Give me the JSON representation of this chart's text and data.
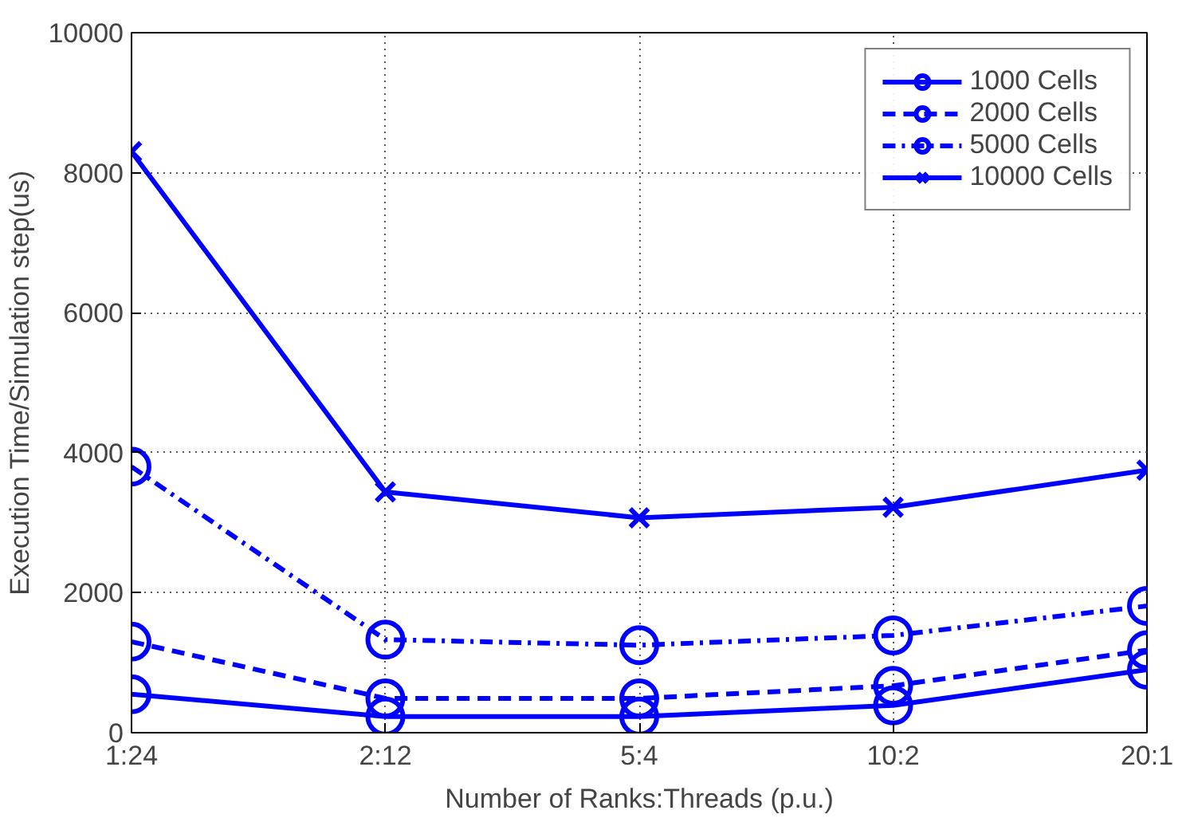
{
  "chart_data": {
    "type": "line",
    "xlabel": "Number of Ranks:Threads (p.u.)",
    "ylabel": "Execution Time/Simulation step(us)",
    "categories": [
      "1:24",
      "2:12",
      "5:4",
      "10:2",
      "20:1"
    ],
    "ylim": [
      0,
      10000
    ],
    "yticks": [
      0,
      2000,
      4000,
      6000,
      8000,
      10000
    ],
    "grid": true,
    "legend": "top right",
    "series": [
      {
        "name": "1000 Cells",
        "color": "#0000ff",
        "marker": "circle",
        "line_style": "solid",
        "values": [
          550,
          230,
          230,
          390,
          900
        ]
      },
      {
        "name": "2000 Cells",
        "color": "#0000ff",
        "marker": "circle",
        "line_style": "dashed",
        "values": [
          1300,
          490,
          490,
          670,
          1180
        ]
      },
      {
        "name": "5000 Cells",
        "color": "#0000ff",
        "marker": "circle",
        "line_style": "dashdot",
        "values": [
          3800,
          1330,
          1250,
          1390,
          1810
        ]
      },
      {
        "name": "10000 Cells",
        "color": "#0000ff",
        "marker": "cross",
        "line_style": "solid",
        "values": [
          8300,
          3440,
          3070,
          3220,
          3750
        ]
      }
    ]
  }
}
